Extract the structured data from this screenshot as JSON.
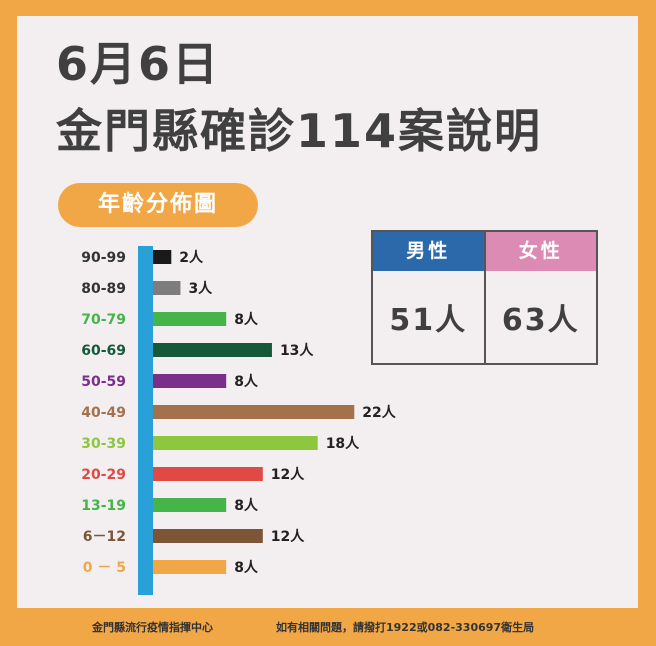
{
  "title": {
    "date": "6月6日",
    "headline": "金門縣確診114案說明"
  },
  "section_label": "年齡分佈圖",
  "gender": [
    {
      "label": "男性",
      "value": "51人",
      "color": "#2b69aa"
    },
    {
      "label": "女性",
      "value": "63人",
      "color": "#dc8cb4"
    }
  ],
  "chart_data": {
    "type": "bar",
    "orientation": "horizontal",
    "categories": [
      "90-99",
      "80-89",
      "70-79",
      "60-69",
      "50-59",
      "40-49",
      "30-39",
      "20-29",
      "13-19",
      "6－12",
      "0 － 5"
    ],
    "values": [
      2,
      3,
      8,
      13,
      8,
      22,
      18,
      12,
      8,
      12,
      8
    ],
    "value_labels": [
      "2人",
      "3人",
      "8人",
      "13人",
      "8人",
      "22人",
      "18人",
      "12人",
      "8人",
      "12人",
      "8人"
    ],
    "colors": [
      "#1a1a1a",
      "#7d7d7d",
      "#45b549",
      "#16593a",
      "#7c2f8a",
      "#a3714c",
      "#8dc63f",
      "#df4a44",
      "#45b549",
      "#7b5536",
      "#f2a746"
    ],
    "axis_color": "#2aa0d8"
  },
  "footer": {
    "left": "金門縣流行疫情指揮中心",
    "right": "如有相關問題，請撥打1922或082-330697衛生局"
  }
}
